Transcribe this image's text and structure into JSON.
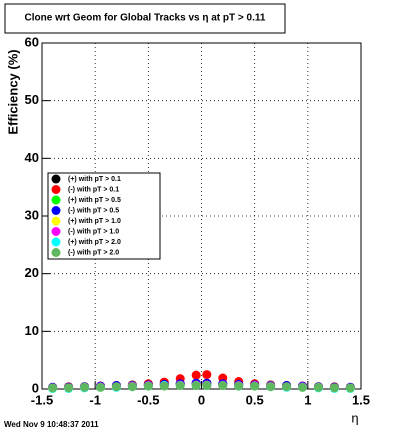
{
  "chart_data": {
    "type": "scatter",
    "title": "Clone wrt Geom for Global Tracks vs   η at pT > 0.11",
    "x_label": "η",
    "y_label": "Efficiency (%)",
    "footer": "Wed Nov  9 10:48:37 2011",
    "x": [
      -1.4,
      -1.25,
      -1.1,
      -0.95,
      -0.8,
      -0.65,
      -0.5,
      -0.35,
      -0.2,
      -0.05,
      0.05,
      0.2,
      0.35,
      0.5,
      0.65,
      0.8,
      0.95,
      1.1,
      1.25,
      1.4
    ],
    "series": [
      {
        "name": "(+) with pT > 0.1",
        "color": "#000000",
        "values": [
          0.2,
          0.3,
          0.4,
          0.5,
          0.6,
          0.7,
          0.8,
          0.9,
          0.9,
          1.0,
          1.0,
          0.9,
          0.9,
          0.8,
          0.7,
          0.6,
          0.5,
          0.4,
          0.3,
          0.2
        ]
      },
      {
        "name": "(-) with pT > 0.1",
        "color": "#ff0000",
        "values": [
          0.3,
          0.4,
          0.4,
          0.5,
          0.6,
          0.7,
          0.9,
          1.2,
          1.8,
          2.4,
          2.5,
          1.9,
          1.3,
          0.9,
          0.7,
          0.6,
          0.5,
          0.4,
          0.4,
          0.3
        ]
      },
      {
        "name": "(+) with pT > 0.5",
        "color": "#00ff00",
        "values": [
          0.2,
          0.3,
          0.3,
          0.4,
          0.5,
          0.6,
          0.6,
          0.7,
          0.8,
          0.8,
          0.8,
          0.8,
          0.7,
          0.6,
          0.6,
          0.5,
          0.4,
          0.3,
          0.3,
          0.2
        ]
      },
      {
        "name": "(-) with pT > 0.5",
        "color": "#0000ff",
        "values": [
          0.3,
          0.3,
          0.4,
          0.5,
          0.6,
          0.6,
          0.7,
          0.8,
          0.9,
          1.0,
          1.0,
          0.9,
          0.8,
          0.7,
          0.6,
          0.6,
          0.5,
          0.4,
          0.3,
          0.3
        ]
      },
      {
        "name": "(+) with pT > 1.0",
        "color": "#ffff00",
        "values": [
          0.1,
          0.2,
          0.3,
          0.3,
          0.4,
          0.5,
          0.5,
          0.6,
          0.6,
          0.7,
          0.7,
          0.6,
          0.6,
          0.5,
          0.5,
          0.4,
          0.3,
          0.3,
          0.2,
          0.1
        ]
      },
      {
        "name": "(-) with pT > 1.0",
        "color": "#ff00ff",
        "values": [
          0.2,
          0.2,
          0.3,
          0.4,
          0.4,
          0.5,
          0.6,
          0.6,
          0.7,
          0.7,
          0.7,
          0.7,
          0.6,
          0.6,
          0.5,
          0.4,
          0.4,
          0.3,
          0.2,
          0.2
        ]
      },
      {
        "name": "(+) with pT > 2.0",
        "color": "#00ffff",
        "values": [
          0.1,
          0.1,
          0.2,
          0.3,
          0.3,
          0.4,
          0.5,
          0.6,
          0.6,
          0.6,
          0.6,
          0.6,
          0.5,
          0.5,
          0.4,
          0.3,
          0.3,
          0.2,
          0.1,
          0.1
        ]
      },
      {
        "name": "(-) with pT > 2.0",
        "color": "#5fb85f",
        "values": [
          0.2,
          0.2,
          0.3,
          0.3,
          0.4,
          0.4,
          0.5,
          0.5,
          0.6,
          0.6,
          0.6,
          0.6,
          0.5,
          0.5,
          0.4,
          0.4,
          0.3,
          0.3,
          0.2,
          0.2
        ]
      }
    ],
    "xlim": [
      -1.5,
      1.5
    ],
    "xticks": [
      -1.5,
      -1,
      -0.5,
      0,
      0.5,
      1,
      1.5
    ],
    "ylim": [
      0,
      60
    ],
    "yticks": [
      0,
      10,
      20,
      30,
      40,
      50,
      60
    ],
    "grid": true
  }
}
